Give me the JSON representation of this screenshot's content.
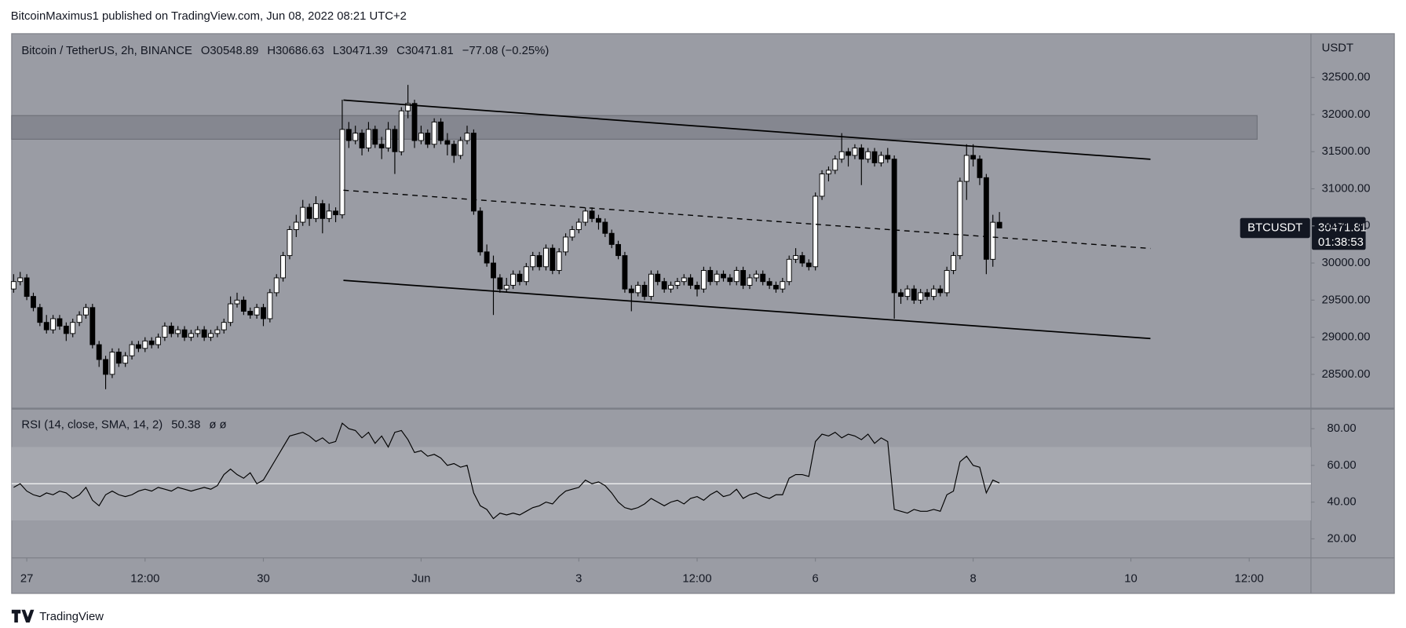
{
  "header": {
    "publisher": "BitcoinMaximus1 published on TradingView.com, Jun 08, 2022 08:21 UTC+2"
  },
  "chart_data": {
    "type": "candlestick",
    "title": "Bitcoin / TetherUS, 2h, BINANCE",
    "ohlc_labels": [
      "O",
      "H",
      "L",
      "C"
    ],
    "change": "−77.08 (−0.25%)",
    "up_color": "#ffffff",
    "down_color": "#000000",
    "candles": [
      [
        29650,
        29850,
        29600,
        29750
      ],
      [
        29750,
        29880,
        29700,
        29800
      ],
      [
        29800,
        29850,
        29500,
        29550
      ],
      [
        29550,
        29600,
        29350,
        29400
      ],
      [
        29400,
        29450,
        29150,
        29200
      ],
      [
        29200,
        29300,
        29050,
        29100
      ],
      [
        29100,
        29300,
        29050,
        29250
      ],
      [
        29250,
        29300,
        29100,
        29150
      ],
      [
        29150,
        29200,
        28950,
        29050
      ],
      [
        29050,
        29250,
        29000,
        29200
      ],
      [
        29200,
        29350,
        29150,
        29300
      ],
      [
        29300,
        29450,
        29250,
        29400
      ],
      [
        29400,
        29450,
        28850,
        28900
      ],
      [
        28900,
        28950,
        28600,
        28700
      ],
      [
        28700,
        28750,
        28300,
        28500
      ],
      [
        28500,
        28850,
        28450,
        28800
      ],
      [
        28800,
        28850,
        28600,
        28650
      ],
      [
        28650,
        28800,
        28600,
        28750
      ],
      [
        28750,
        28950,
        28700,
        28900
      ],
      [
        28900,
        28950,
        28800,
        28850
      ],
      [
        28850,
        29000,
        28800,
        28950
      ],
      [
        28950,
        29000,
        28850,
        28900
      ],
      [
        28900,
        29050,
        28850,
        29000
      ],
      [
        29000,
        29200,
        28950,
        29150
      ],
      [
        29150,
        29200,
        29000,
        29050
      ],
      [
        29050,
        29150,
        29000,
        29100
      ],
      [
        29100,
        29150,
        28950,
        29000
      ],
      [
        29000,
        29100,
        28950,
        29050
      ],
      [
        29050,
        29150,
        29000,
        29100
      ],
      [
        29100,
        29150,
        28950,
        29000
      ],
      [
        29000,
        29100,
        28950,
        29050
      ],
      [
        29050,
        29150,
        29000,
        29100
      ],
      [
        29100,
        29250,
        29050,
        29200
      ],
      [
        29200,
        29550,
        29150,
        29450
      ],
      [
        29450,
        29600,
        29400,
        29500
      ],
      [
        29500,
        29550,
        29300,
        29350
      ],
      [
        29350,
        29400,
        29250,
        29300
      ],
      [
        29300,
        29450,
        29250,
        29400
      ],
      [
        29400,
        29450,
        29150,
        29250
      ],
      [
        29250,
        29650,
        29200,
        29600
      ],
      [
        29600,
        29850,
        29550,
        29800
      ],
      [
        29800,
        30150,
        29750,
        30100
      ],
      [
        30100,
        30500,
        30050,
        30450
      ],
      [
        30450,
        30650,
        30350,
        30550
      ],
      [
        30550,
        30850,
        30500,
        30750
      ],
      [
        30750,
        30800,
        30500,
        30600
      ],
      [
        30600,
        30900,
        30550,
        30800
      ],
      [
        30800,
        30850,
        30400,
        30600
      ],
      [
        30600,
        30800,
        30550,
        30700
      ],
      [
        30700,
        30750,
        30550,
        30650
      ],
      [
        30650,
        32200,
        30600,
        31800
      ],
      [
        31800,
        31900,
        31550,
        31650
      ],
      [
        31650,
        31850,
        31600,
        31750
      ],
      [
        31750,
        31800,
        31450,
        31550
      ],
      [
        31550,
        31900,
        31500,
        31800
      ],
      [
        31800,
        31850,
        31550,
        31600
      ],
      [
        31600,
        31700,
        31400,
        31550
      ],
      [
        31550,
        31900,
        31500,
        31800
      ],
      [
        31800,
        31850,
        31200,
        31500
      ],
      [
        31500,
        32100,
        31450,
        32050
      ],
      [
        32050,
        32400,
        31950,
        32150
      ],
      [
        32150,
        32200,
        31550,
        31650
      ],
      [
        31650,
        31850,
        31600,
        31750
      ],
      [
        31750,
        31800,
        31550,
        31600
      ],
      [
        31600,
        31950,
        31550,
        31900
      ],
      [
        31900,
        31950,
        31600,
        31650
      ],
      [
        31650,
        31750,
        31450,
        31600
      ],
      [
        31600,
        31650,
        31350,
        31450
      ],
      [
        31450,
        31700,
        31400,
        31650
      ],
      [
        31650,
        31850,
        31600,
        31750
      ],
      [
        31750,
        31800,
        30650,
        30700
      ],
      [
        30700,
        30750,
        30100,
        30150
      ],
      [
        30150,
        30250,
        29950,
        30000
      ],
      [
        30000,
        30100,
        29300,
        29800
      ],
      [
        29800,
        29850,
        29600,
        29650
      ],
      [
        29650,
        29800,
        29600,
        29700
      ],
      [
        29700,
        29900,
        29650,
        29850
      ],
      [
        29850,
        29900,
        29700,
        29750
      ],
      [
        29750,
        30000,
        29700,
        29950
      ],
      [
        29950,
        30150,
        29900,
        30100
      ],
      [
        30100,
        30150,
        29900,
        29950
      ],
      [
        29950,
        30250,
        29900,
        30200
      ],
      [
        30200,
        30250,
        29850,
        29900
      ],
      [
        29900,
        30200,
        29850,
        30150
      ],
      [
        30150,
        30400,
        30100,
        30350
      ],
      [
        30350,
        30500,
        30300,
        30450
      ],
      [
        30450,
        30600,
        30400,
        30550
      ],
      [
        30550,
        30750,
        30500,
        30700
      ],
      [
        30700,
        30750,
        30550,
        30600
      ],
      [
        30600,
        30650,
        30450,
        30550
      ],
      [
        30550,
        30600,
        30350,
        30400
      ],
      [
        30400,
        30450,
        30200,
        30250
      ],
      [
        30250,
        30300,
        30050,
        30100
      ],
      [
        30100,
        30150,
        29600,
        29650
      ],
      [
        29650,
        29700,
        29350,
        29600
      ],
      [
        29600,
        29750,
        29550,
        29700
      ],
      [
        29700,
        29750,
        29500,
        29550
      ],
      [
        29550,
        29900,
        29500,
        29850
      ],
      [
        29850,
        29900,
        29700,
        29750
      ],
      [
        29750,
        29800,
        29600,
        29650
      ],
      [
        29650,
        29750,
        29600,
        29700
      ],
      [
        29700,
        29800,
        29650,
        29750
      ],
      [
        29750,
        29850,
        29700,
        29800
      ],
      [
        29800,
        29850,
        29650,
        29700
      ],
      [
        29700,
        29750,
        29550,
        29650
      ],
      [
        29650,
        29950,
        29600,
        29900
      ],
      [
        29900,
        29950,
        29700,
        29750
      ],
      [
        29750,
        29900,
        29700,
        29850
      ],
      [
        29850,
        29900,
        29750,
        29800
      ],
      [
        29800,
        29850,
        29700,
        29750
      ],
      [
        29750,
        29950,
        29700,
        29900
      ],
      [
        29900,
        29950,
        29650,
        29700
      ],
      [
        29700,
        29850,
        29650,
        29800
      ],
      [
        29800,
        29900,
        29750,
        29850
      ],
      [
        29850,
        29900,
        29700,
        29750
      ],
      [
        29750,
        29800,
        29650,
        29700
      ],
      [
        29700,
        29750,
        29600,
        29650
      ],
      [
        29650,
        29800,
        29600,
        29750
      ],
      [
        29750,
        30100,
        29700,
        30050
      ],
      [
        30050,
        30200,
        30000,
        30100
      ],
      [
        30100,
        30150,
        29950,
        30000
      ],
      [
        30000,
        30050,
        29900,
        29950
      ],
      [
        29950,
        30950,
        29900,
        30900
      ],
      [
        30900,
        31250,
        30850,
        31200
      ],
      [
        31200,
        31300,
        31100,
        31250
      ],
      [
        31250,
        31450,
        31200,
        31400
      ],
      [
        31400,
        31750,
        31350,
        31500
      ],
      [
        31500,
        31550,
        31300,
        31450
      ],
      [
        31450,
        31600,
        31400,
        31550
      ],
      [
        31550,
        31600,
        31050,
        31400
      ],
      [
        31400,
        31550,
        31350,
        31500
      ],
      [
        31500,
        31550,
        31300,
        31350
      ],
      [
        31350,
        31500,
        31300,
        31450
      ],
      [
        31450,
        31550,
        31350,
        31400
      ],
      [
        31400,
        31450,
        29250,
        29600
      ],
      [
        29600,
        29650,
        29450,
        29550
      ],
      [
        29550,
        29700,
        29500,
        29650
      ],
      [
        29650,
        29700,
        29450,
        29500
      ],
      [
        29500,
        29650,
        29450,
        29600
      ],
      [
        29600,
        29650,
        29500,
        29550
      ],
      [
        29550,
        29700,
        29500,
        29650
      ],
      [
        29650,
        29700,
        29550,
        29600
      ],
      [
        29600,
        29950,
        29550,
        29900
      ],
      [
        29900,
        30150,
        29850,
        30100
      ],
      [
        30100,
        31150,
        30050,
        31100
      ],
      [
        31100,
        31600,
        30850,
        31450
      ],
      [
        31450,
        31600,
        31300,
        31400
      ],
      [
        31400,
        31450,
        31050,
        31150
      ],
      [
        31150,
        31200,
        29850,
        30050
      ],
      [
        30050,
        30650,
        29950,
        30548.89
      ],
      [
        30548.89,
        30686.63,
        30471.39,
        30471.81
      ]
    ],
    "ylim": [
      28050,
      33090
    ],
    "yticks": [
      {
        "value": 28500,
        "label": "28500.00"
      },
      {
        "value": 29000,
        "label": "29000.00"
      },
      {
        "value": 29500,
        "label": "29500.00"
      },
      {
        "value": 30000,
        "label": "30000.00"
      },
      {
        "value": 30500,
        "label": "30500.00"
      },
      {
        "value": 31000,
        "label": "31000.00"
      },
      {
        "value": 31500,
        "label": "31500.00"
      },
      {
        "value": 32000,
        "label": "32000.00"
      },
      {
        "value": 32500,
        "label": "32500.00"
      }
    ],
    "y_unit": "USDT",
    "price_tag": {
      "symbol": "BTCUSDT",
      "countdown": "01:38:53"
    },
    "xlim": [
      -0.3,
      197.4
    ],
    "xticks": [
      {
        "value": 2,
        "label": "27"
      },
      {
        "value": 20,
        "label": "12:00"
      },
      {
        "value": 38,
        "label": "30"
      },
      {
        "value": 62,
        "label": "Jun"
      },
      {
        "value": 86,
        "label": "3"
      },
      {
        "value": 104,
        "label": "12:00"
      },
      {
        "value": 122,
        "label": "6"
      },
      {
        "value": 146,
        "label": "8"
      },
      {
        "value": 170,
        "label": "10"
      },
      {
        "value": 188,
        "label": "12:00"
      }
    ],
    "rsi": {
      "title": "RSI (14, close, SMA, 14, 2)",
      "flags": "ø ø",
      "color": "#000000",
      "values": [
        48,
        50,
        46,
        44,
        43,
        45,
        44,
        46,
        45,
        42,
        44,
        48,
        41,
        38,
        44,
        46,
        44,
        43,
        44,
        46,
        47,
        46,
        48,
        47,
        46,
        48,
        47,
        46,
        47,
        48,
        47,
        49,
        55,
        58,
        55,
        53,
        56,
        50,
        52,
        58,
        64,
        70,
        76,
        77,
        78,
        76,
        73,
        75,
        72,
        73,
        83,
        80,
        79,
        75,
        78,
        72,
        76,
        70,
        78,
        79,
        74,
        67,
        68,
        65,
        66,
        64,
        60,
        61,
        59,
        60,
        45,
        38,
        36,
        31,
        34,
        33,
        34,
        33,
        35,
        37,
        38,
        40,
        39,
        43,
        46,
        47,
        48,
        52,
        50,
        51,
        49,
        45,
        40,
        37,
        36,
        37,
        39,
        42,
        40,
        38,
        40,
        41,
        39,
        42,
        43,
        41,
        44,
        46,
        43,
        44,
        47,
        42,
        44,
        45,
        43,
        42,
        44,
        44,
        53,
        55,
        55,
        54,
        73,
        77,
        76,
        78,
        75,
        77,
        76,
        74,
        77,
        72,
        75,
        73,
        36,
        35,
        34,
        36,
        35,
        35,
        36,
        35,
        44,
        46,
        62,
        65,
        60,
        59,
        45,
        52,
        50.38
      ],
      "ylim": [
        9.6,
        90.4
      ],
      "yticks": [
        {
          "value": 20,
          "label": "20.00"
        },
        {
          "value": 40,
          "label": "40.00"
        },
        {
          "value": 60,
          "label": "60.00"
        },
        {
          "value": 80,
          "label": "80.00"
        }
      ],
      "band": [
        30,
        70
      ],
      "midline": 50
    }
  },
  "footer": {
    "brand": "TradingView"
  }
}
